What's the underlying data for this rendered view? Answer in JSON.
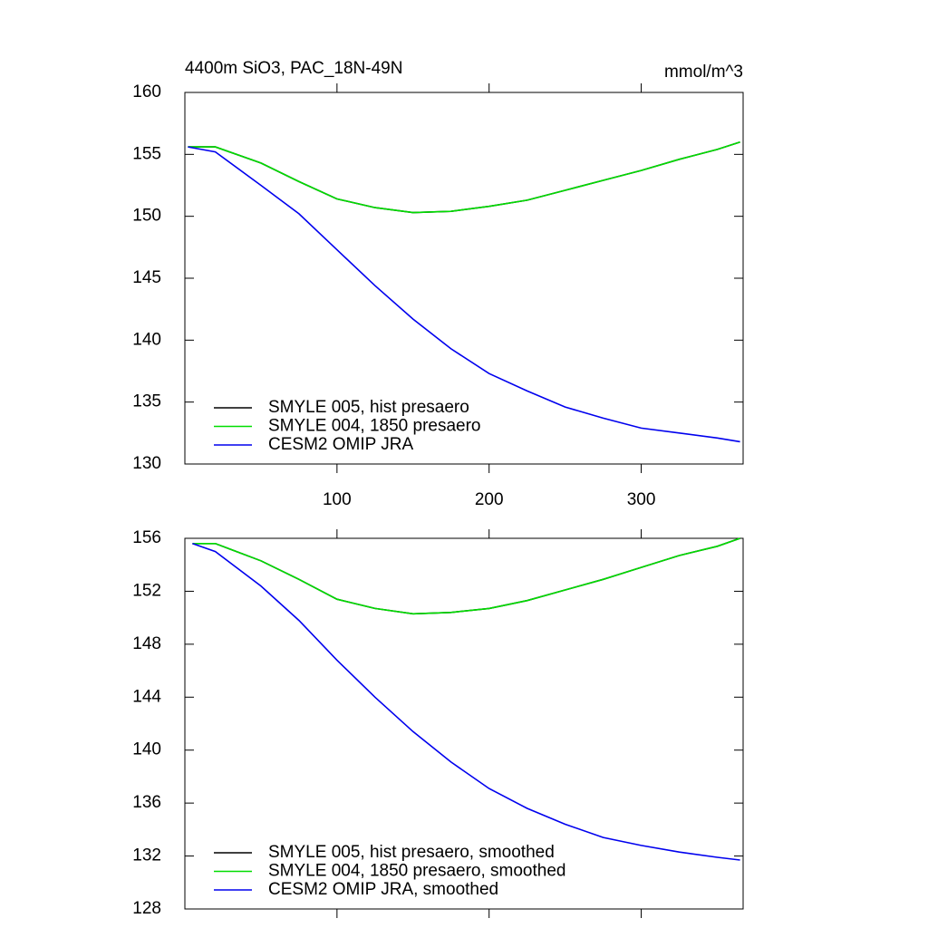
{
  "chart_data": [
    {
      "type": "line",
      "title": "4400m SiO3, PAC_18N-49N",
      "units": "mmol/m^3",
      "x": [
        2,
        20,
        50,
        75,
        100,
        125,
        150,
        175,
        200,
        225,
        250,
        275,
        300,
        325,
        350,
        365
      ],
      "series": [
        {
          "name": "SMYLE 005, hist presaero",
          "color": "#000000",
          "values": [
            155.6,
            155.6,
            154.3,
            152.8,
            151.4,
            150.7,
            150.3,
            150.4,
            150.8,
            151.3,
            152.1,
            152.9,
            153.7,
            154.6,
            155.4,
            156.0
          ]
        },
        {
          "name": "SMYLE 004, 1850 presaero",
          "color": "#00dd00",
          "values": [
            155.6,
            155.6,
            154.3,
            152.8,
            151.4,
            150.7,
            150.3,
            150.4,
            150.8,
            151.3,
            152.1,
            152.9,
            153.7,
            154.6,
            155.4,
            156.0
          ]
        },
        {
          "name": "CESM2 OMIP JRA",
          "color": "#0000ee",
          "values": [
            155.6,
            155.2,
            152.5,
            150.2,
            147.3,
            144.4,
            141.7,
            139.3,
            137.3,
            135.9,
            134.6,
            133.7,
            132.9,
            132.5,
            132.1,
            131.8
          ]
        }
      ],
      "xlim": [
        0,
        367
      ],
      "ylim": [
        130,
        160
      ],
      "xticks": [
        100,
        200,
        300
      ],
      "yticks": [
        130,
        135,
        140,
        145,
        150,
        155,
        160
      ],
      "show_xtick_labels": true
    },
    {
      "type": "line",
      "x": [
        5,
        20,
        50,
        75,
        100,
        125,
        150,
        175,
        200,
        225,
        250,
        275,
        300,
        325,
        350,
        365
      ],
      "series": [
        {
          "name": "SMYLE 005, hist presaero, smoothed",
          "color": "#000000",
          "values": [
            155.6,
            155.6,
            154.3,
            152.9,
            151.4,
            150.7,
            150.3,
            150.4,
            150.7,
            151.3,
            152.1,
            152.9,
            153.8,
            154.7,
            155.4,
            156.0
          ]
        },
        {
          "name": "SMYLE 004, 1850 presaero, smoothed",
          "color": "#00dd00",
          "values": [
            155.6,
            155.6,
            154.3,
            152.9,
            151.4,
            150.7,
            150.3,
            150.4,
            150.7,
            151.3,
            152.1,
            152.9,
            153.8,
            154.7,
            155.4,
            156.0
          ]
        },
        {
          "name": "CESM2 OMIP JRA, smoothed",
          "color": "#0000ee",
          "values": [
            155.6,
            155.0,
            152.4,
            149.8,
            146.8,
            144.0,
            141.4,
            139.1,
            137.1,
            135.6,
            134.4,
            133.4,
            132.8,
            132.3,
            131.9,
            131.7
          ]
        }
      ],
      "xlim": [
        0,
        367
      ],
      "ylim": [
        128,
        156
      ],
      "xticks": [
        100,
        200,
        300
      ],
      "yticks": [
        128,
        132,
        136,
        140,
        144,
        148,
        152,
        156
      ],
      "show_xtick_labels": false
    }
  ]
}
